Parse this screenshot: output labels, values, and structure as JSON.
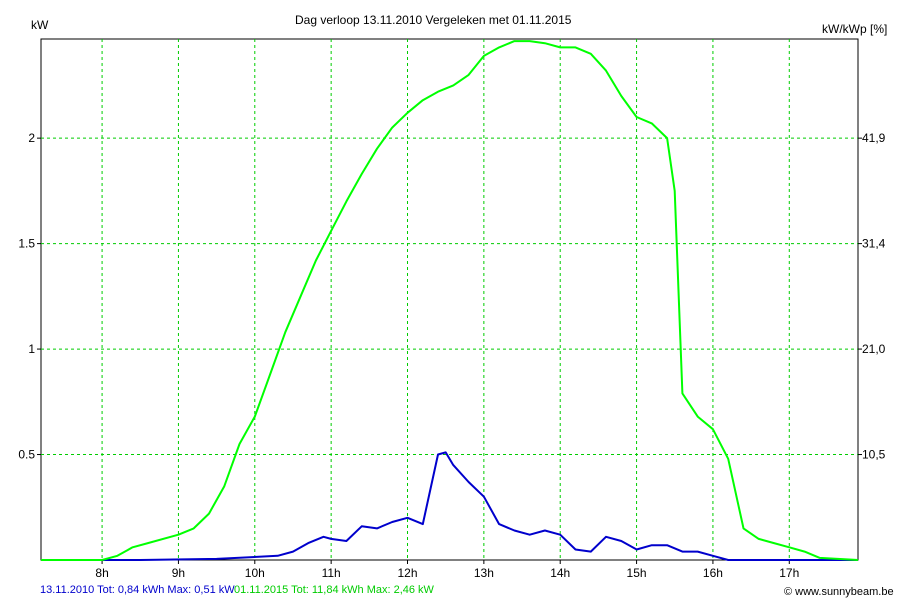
{
  "chart_data": {
    "type": "line",
    "title": "Dag  verloop 13.11.2010   Vergeleken met 01.11.2015",
    "ylabel_left": "kW",
    "ylabel_right": "kW/kWp [%]",
    "x_ticks": [
      "8h",
      "9h",
      "10h",
      "11h",
      "12h",
      "13h",
      "14h",
      "15h",
      "16h",
      "17h"
    ],
    "x_tick_values": [
      8,
      9,
      10,
      11,
      12,
      13,
      14,
      15,
      16,
      17
    ],
    "xlim": [
      7.2,
      17.9
    ],
    "y_ticks": [
      "0.5",
      "1",
      "1.5",
      "2"
    ],
    "y_tick_values": [
      0.5,
      1,
      1.5,
      2
    ],
    "ylim": [
      0,
      2.47
    ],
    "y_right_ticks": [
      "10,5",
      "21,0",
      "31,4",
      "41,9"
    ],
    "grid": true,
    "series": [
      {
        "name": "13.11.2010",
        "color": "#0000cc",
        "x": [
          7.2,
          8.5,
          9.5,
          10.3,
          10.5,
          10.7,
          10.9,
          11.0,
          11.2,
          11.4,
          11.6,
          11.8,
          12.0,
          12.2,
          12.4,
          12.5,
          12.6,
          12.8,
          13.0,
          13.2,
          13.4,
          13.6,
          13.8,
          14.0,
          14.2,
          14.4,
          14.6,
          14.8,
          15.0,
          15.2,
          15.4,
          15.6,
          15.8,
          16.0,
          16.2,
          17.9
        ],
        "values": [
          0,
          0,
          0.005,
          0.02,
          0.04,
          0.08,
          0.11,
          0.1,
          0.09,
          0.16,
          0.15,
          0.18,
          0.2,
          0.17,
          0.5,
          0.51,
          0.45,
          0.37,
          0.3,
          0.17,
          0.14,
          0.12,
          0.14,
          0.12,
          0.05,
          0.04,
          0.11,
          0.09,
          0.05,
          0.07,
          0.07,
          0.04,
          0.04,
          0.02,
          0.0,
          0
        ]
      },
      {
        "name": "01.11.2015",
        "color": "#00ff00",
        "x": [
          7.2,
          8.0,
          8.2,
          8.4,
          8.6,
          9.0,
          9.2,
          9.4,
          9.6,
          9.8,
          10.0,
          10.2,
          10.4,
          10.6,
          10.8,
          11.0,
          11.2,
          11.4,
          11.6,
          11.8,
          12.0,
          12.2,
          12.4,
          12.6,
          12.8,
          13.0,
          13.2,
          13.4,
          13.6,
          13.8,
          14.0,
          14.2,
          14.4,
          14.6,
          14.8,
          15.0,
          15.2,
          15.4,
          15.5,
          15.6,
          15.8,
          16.0,
          16.2,
          16.4,
          16.6,
          16.8,
          17.0,
          17.2,
          17.4,
          17.9
        ],
        "values": [
          0,
          0,
          0.02,
          0.06,
          0.08,
          0.12,
          0.15,
          0.22,
          0.35,
          0.55,
          0.68,
          0.88,
          1.08,
          1.25,
          1.42,
          1.56,
          1.7,
          1.83,
          1.95,
          2.05,
          2.12,
          2.18,
          2.22,
          2.25,
          2.3,
          2.39,
          2.43,
          2.46,
          2.46,
          2.45,
          2.43,
          2.43,
          2.4,
          2.32,
          2.2,
          2.1,
          2.07,
          2.0,
          1.75,
          0.79,
          0.68,
          0.62,
          0.48,
          0.15,
          0.1,
          0.08,
          0.06,
          0.04,
          0.01,
          0
        ]
      }
    ]
  },
  "legend": {
    "series_a": "13.11.2010 Tot: 0,84 kWh Max: 0,51 kW",
    "series_b": "01.11.2015 Tot: 11,84 kWh Max: 2,46 kW"
  },
  "credit": "© www.sunnybeam.be"
}
